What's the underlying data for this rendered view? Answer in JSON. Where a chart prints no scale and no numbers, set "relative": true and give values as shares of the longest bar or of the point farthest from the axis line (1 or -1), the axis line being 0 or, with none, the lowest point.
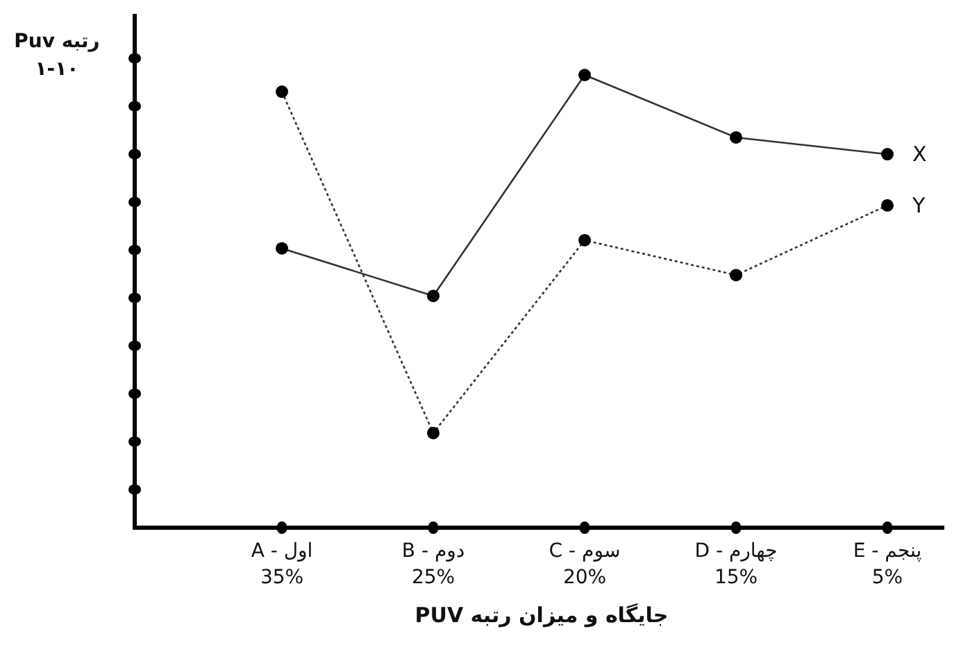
{
  "chart_data": {
    "type": "line",
    "relative": true,
    "xlabel": "جایگاه و میزان رتبه PUV",
    "ylabel": "رتبه Puv ۱-۱۰",
    "categories": [
      "A - اول 35%",
      "B - دوم 25%",
      "C - سوم 20%",
      "D - چهارم 15%",
      "E - پنجم 5%"
    ],
    "marker": "circle",
    "series": [
      {
        "name": "X",
        "color": "#333333",
        "line_style": "solid",
        "values": [
          0.617,
          0.512,
          1,
          0.862,
          0.825
        ]
      },
      {
        "name": "Y",
        "color": "#333333",
        "line_style": "dotted",
        "values": [
          0.963,
          0.209,
          0.635,
          0.558,
          0.712
        ]
      }
    ]
  }
}
